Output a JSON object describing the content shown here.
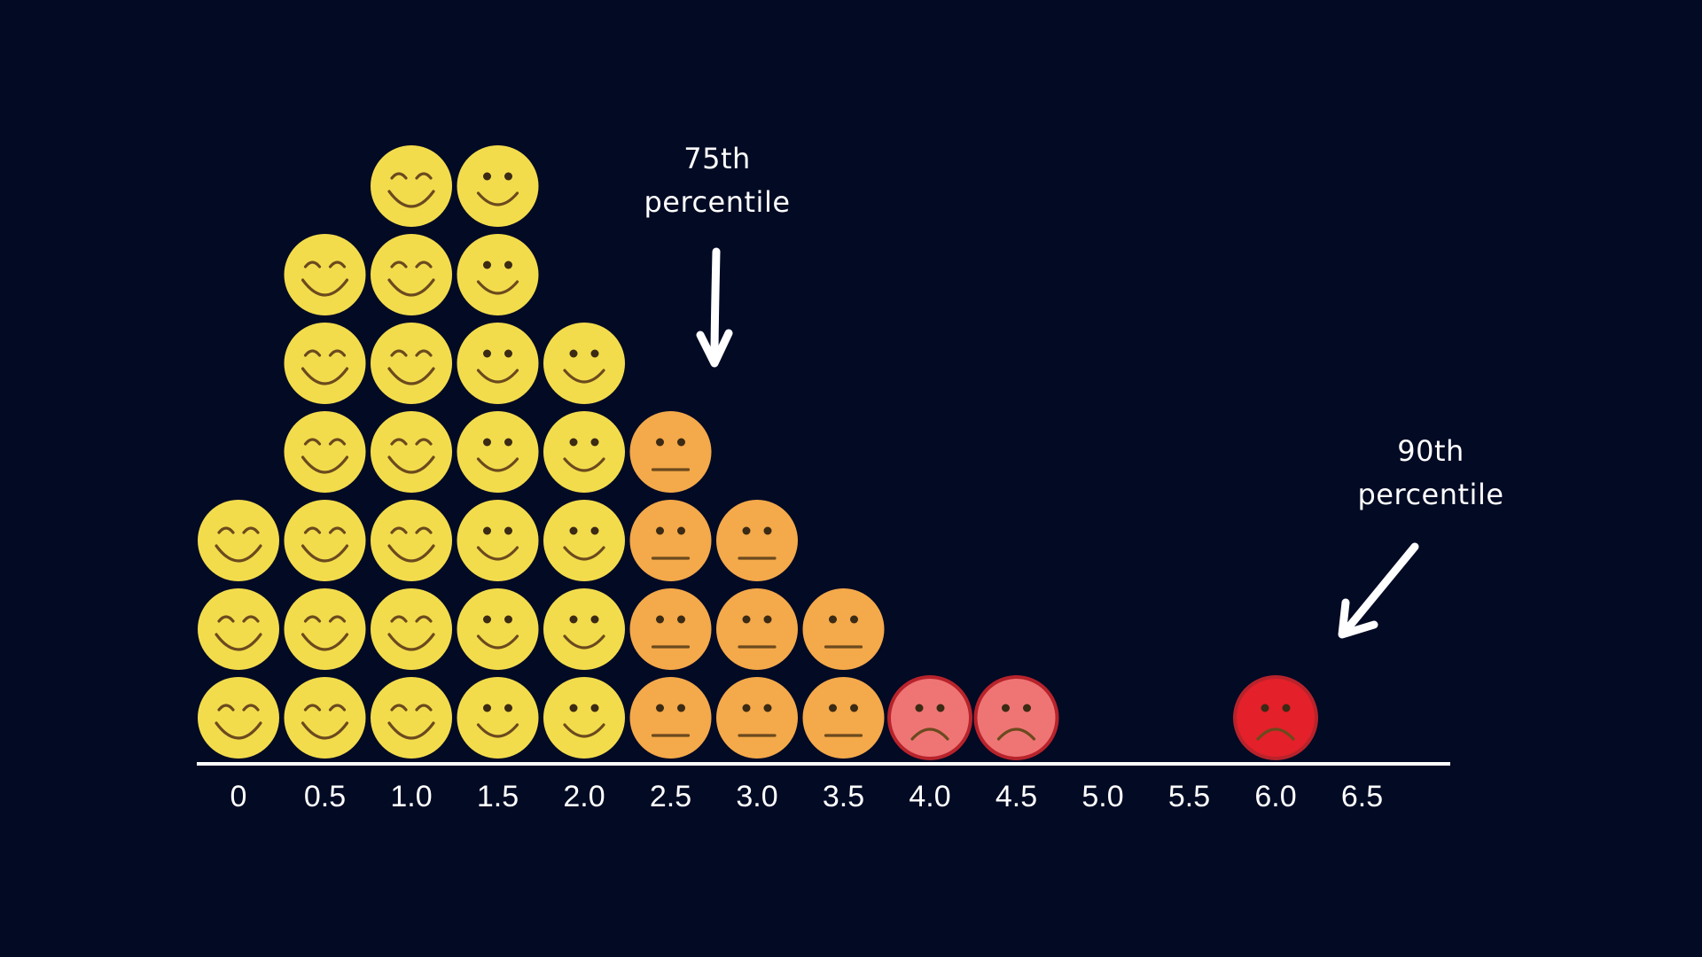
{
  "chart_data": {
    "type": "dot-histogram",
    "title": "",
    "xlabel": "",
    "ylabel": "",
    "x_ticks": [
      "0",
      "0.5",
      "1.0",
      "1.5",
      "2.0",
      "2.5",
      "3.0",
      "3.5",
      "4.0",
      "4.5",
      "5.0",
      "5.5",
      "6.0",
      "6.5"
    ],
    "x": [
      0,
      0.5,
      1.0,
      1.5,
      2.0,
      2.5,
      3.0,
      3.5,
      4.0,
      4.5,
      5.0,
      5.5,
      6.0,
      6.5
    ],
    "counts": [
      3,
      6,
      7,
      7,
      5,
      4,
      3,
      2,
      1,
      1,
      0,
      0,
      1,
      0
    ],
    "face_moods": [
      "happy",
      "happy",
      "happy",
      "content",
      "content",
      "neutral",
      "neutral",
      "neutral",
      "sad",
      "sad",
      "",
      "",
      "very-sad",
      ""
    ],
    "mood_colors": {
      "happy": "#f3dc4c",
      "content": "#f3dc4c",
      "neutral": "#f4a94a",
      "sad": "#ef7575",
      "very-sad": "#e4202a"
    },
    "grid": false,
    "annotations": [
      {
        "line1": "75th",
        "line2": "percentile",
        "x": 2.75
      },
      {
        "line1": "90th",
        "line2": "percentile",
        "x": 6.0
      }
    ]
  },
  "colors": {
    "background": "#020a24",
    "axis": "#ffffff",
    "text": "#ffffff"
  }
}
